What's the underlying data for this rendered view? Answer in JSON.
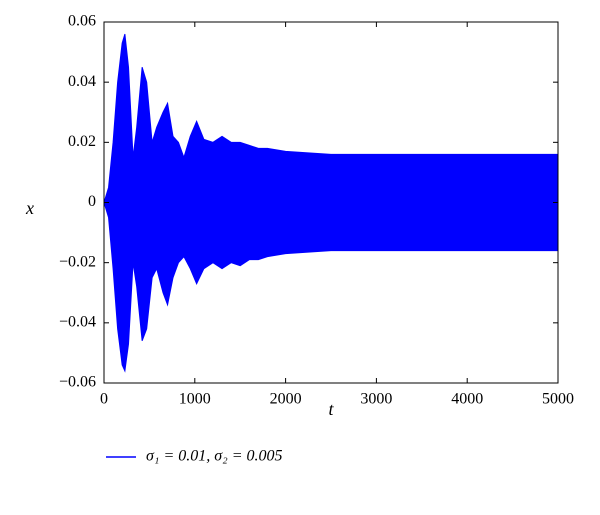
{
  "chart_data": {
    "type": "envelope",
    "x_label": "t",
    "y_label": "x",
    "x": [
      0,
      50,
      100,
      150,
      200,
      230,
      270,
      320,
      360,
      420,
      470,
      530,
      580,
      650,
      700,
      760,
      820,
      880,
      950,
      1020,
      1100,
      1200,
      1300,
      1400,
      1500,
      1600,
      1700,
      1800,
      2000,
      2500,
      3000,
      4000,
      5000
    ],
    "series": [
      {
        "name": "σ₁ = 0.01, σ₂ = 0.005",
        "color": "#0000ff",
        "values": [
          0,
          0.005,
          0.02,
          0.04,
          0.053,
          0.056,
          0.045,
          0.015,
          0.025,
          0.045,
          0.04,
          0.02,
          0.025,
          0.03,
          0.033,
          0.022,
          0.02,
          0.015,
          0.022,
          0.027,
          0.021,
          0.02,
          0.022,
          0.02,
          0.02,
          0.019,
          0.018,
          0.018,
          0.017,
          0.016,
          0.016,
          0.016,
          0.016
        ],
        "lower": [
          0,
          -0.005,
          -0.022,
          -0.042,
          -0.054,
          -0.056,
          -0.047,
          -0.02,
          -0.028,
          -0.046,
          -0.042,
          -0.025,
          -0.022,
          -0.03,
          -0.034,
          -0.025,
          -0.02,
          -0.018,
          -0.022,
          -0.027,
          -0.022,
          -0.02,
          -0.022,
          -0.02,
          -0.021,
          -0.019,
          -0.019,
          -0.018,
          -0.017,
          -0.016,
          -0.016,
          -0.016,
          -0.016
        ]
      }
    ],
    "xlim": [
      0,
      5000
    ],
    "xticks": [
      0,
      1000,
      2000,
      3000,
      4000,
      5000
    ],
    "ylim": [
      -0.06,
      0.06
    ],
    "yticks": [
      {
        "value": -0.06,
        "label": "−0.06"
      },
      {
        "value": -0.04,
        "label": "−0.04"
      },
      {
        "value": -0.02,
        "label": "−0.02"
      },
      0,
      0.02,
      0.04,
      0.06
    ]
  }
}
